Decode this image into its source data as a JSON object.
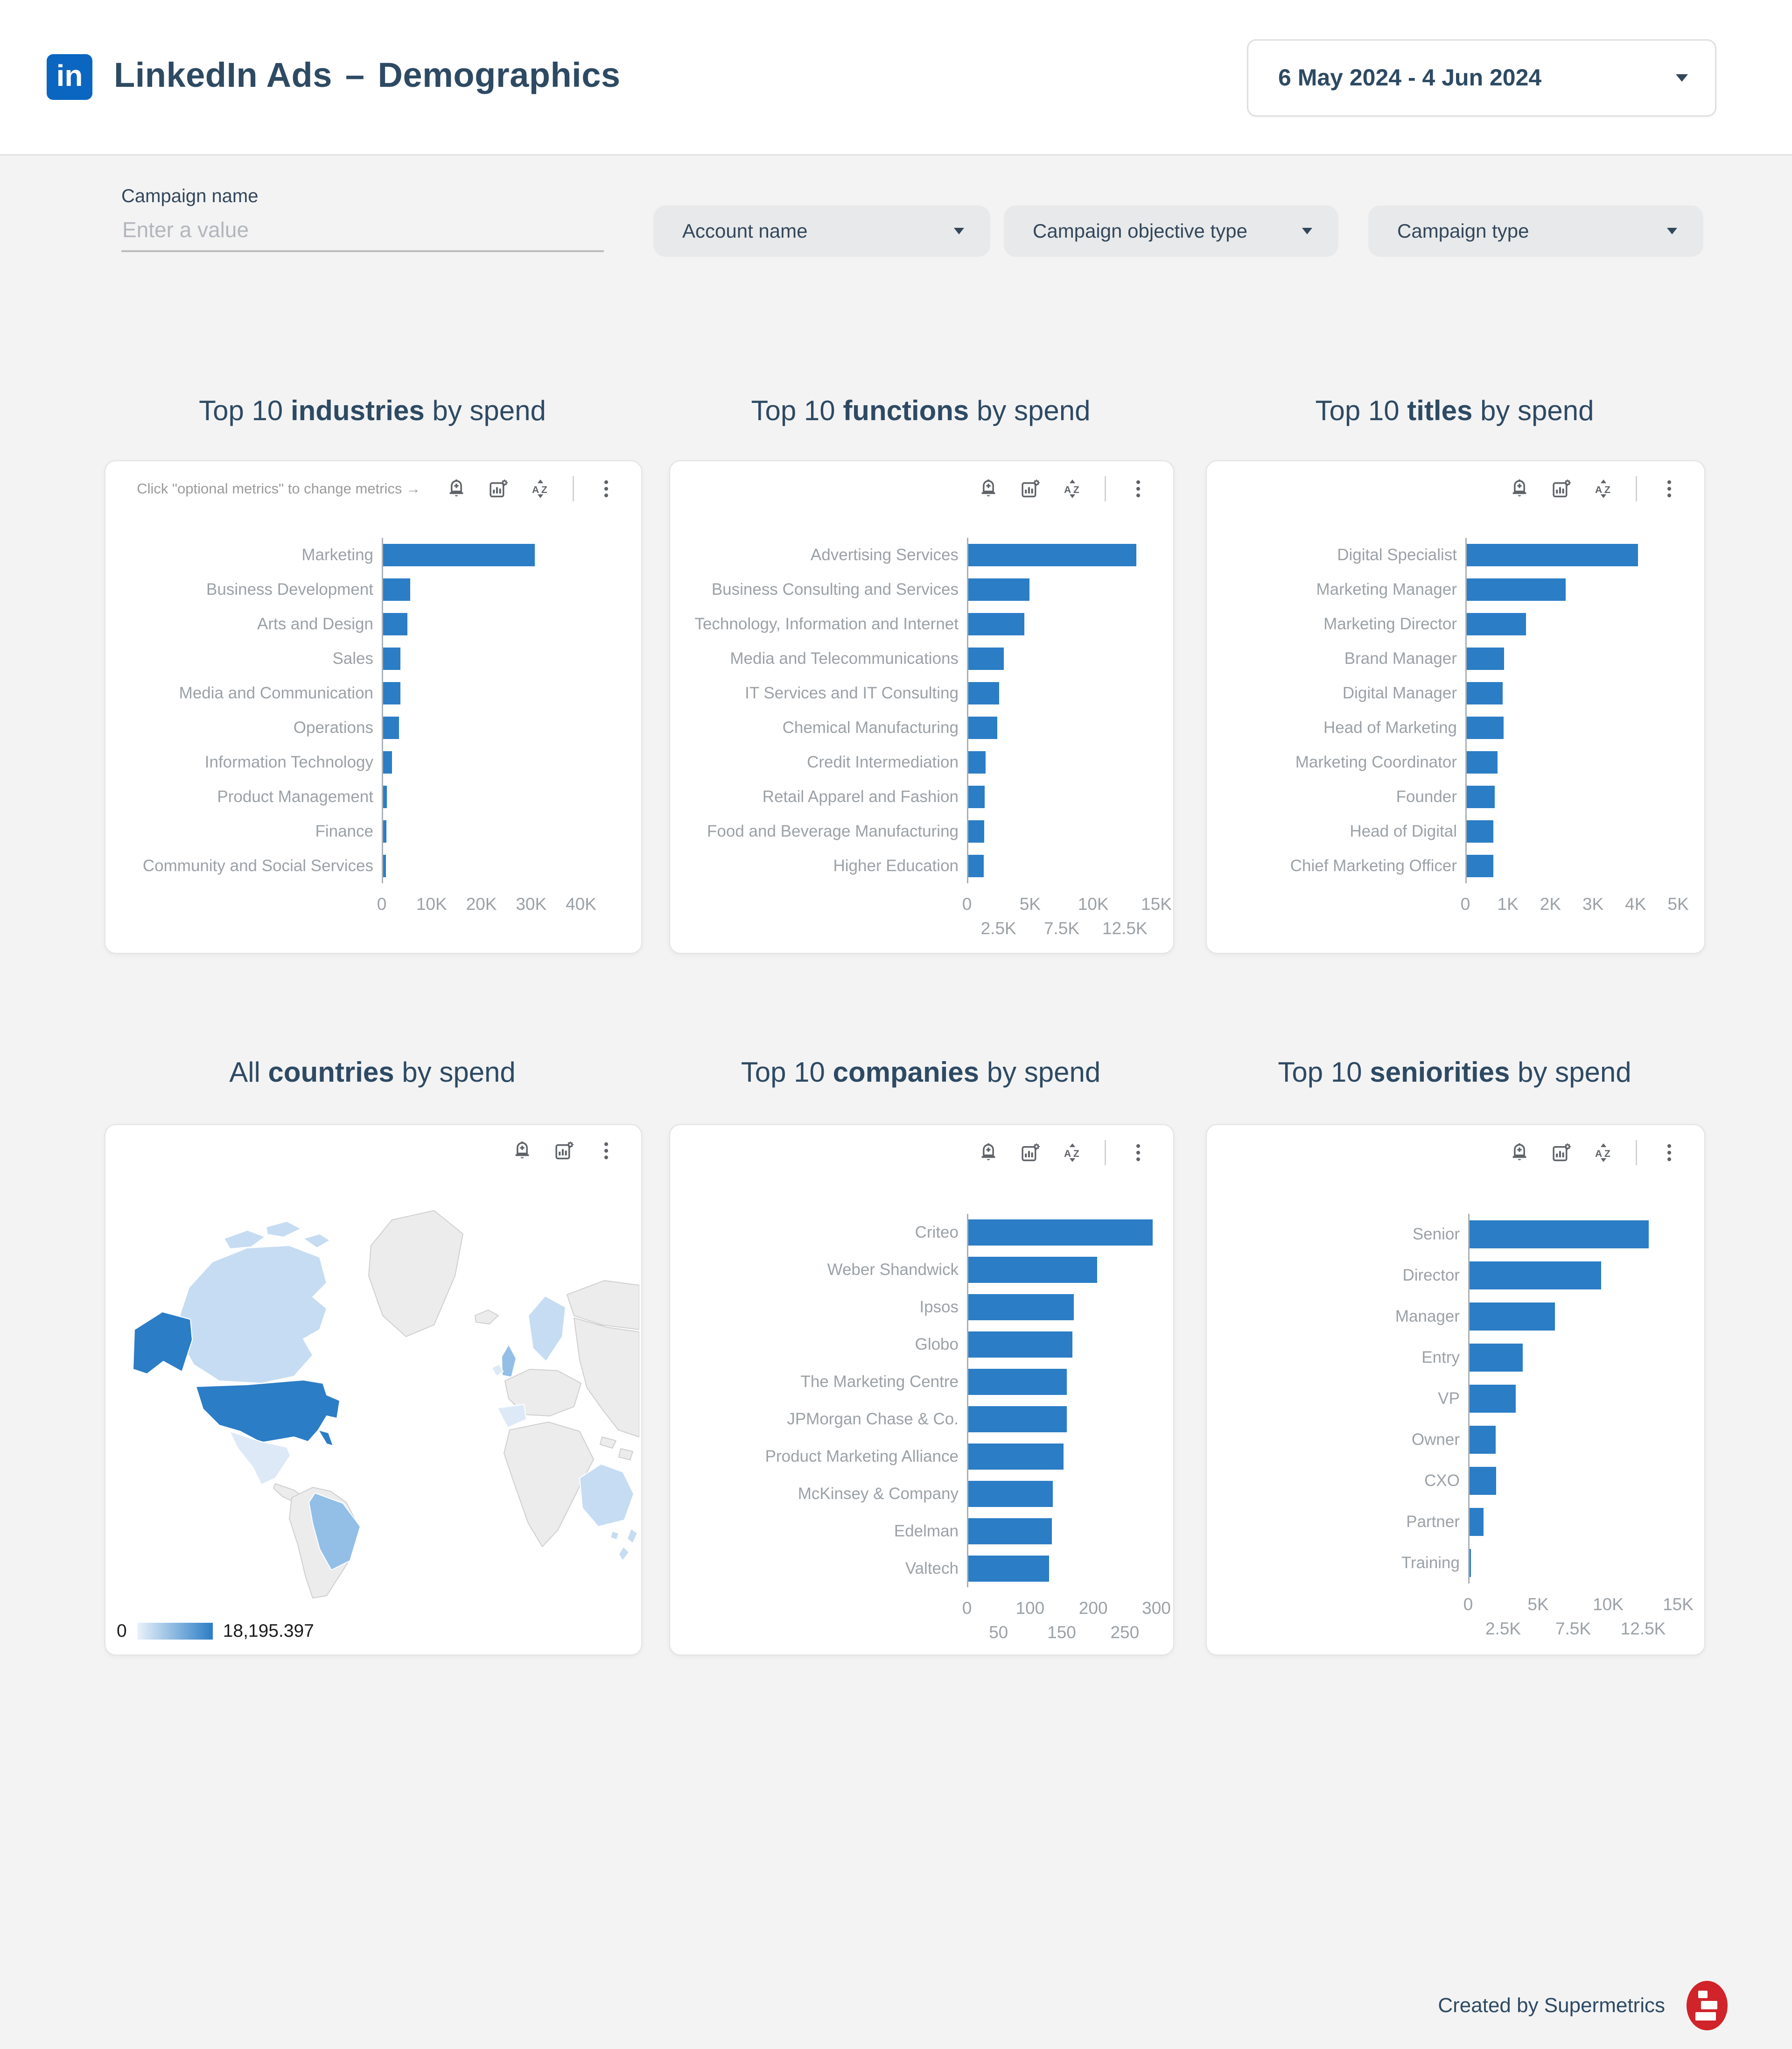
{
  "header": {
    "logo_text": "in",
    "app": "LinkedIn Ads",
    "separator": "–",
    "page": "Demographics",
    "date_range": "6 May 2024 - 4 Jun 2024"
  },
  "filters": {
    "campaign_name_label": "Campaign name",
    "campaign_name_placeholder": "Enter a value",
    "account_name": "Account name",
    "campaign_objective_type": "Campaign objective type",
    "campaign_type": "Campaign type"
  },
  "hint": "Click \"optional metrics\" to change metrics →",
  "footer": {
    "credit": "Created by Supermetrics"
  },
  "colors": {
    "bar": "#2b7dc6",
    "map_high": "#2b7dc6",
    "map_medium": "#93bfe6",
    "map_low": "#c6dcf2",
    "map_pale": "#dde9f6",
    "map_none": "#ececed",
    "accent_dark": "#2e4a63"
  },
  "chart_data": {
    "industries": {
      "type": "bar",
      "title_prefix": "Top 10 ",
      "title_bold": "industries",
      "title_suffix": " by spend",
      "categories": [
        "Marketing",
        "Business Development",
        "Arts and Design",
        "Sales",
        "Media and Communication",
        "Operations",
        "Information Technology",
        "Product Management",
        "Finance",
        "Community and Social Services"
      ],
      "values": [
        30400,
        5400,
        4900,
        3500,
        3450,
        3200,
        1750,
        760,
        700,
        520
      ],
      "xlim": [
        0,
        40000
      ],
      "ticks": [
        {
          "v": 0,
          "label": "0",
          "row": 0
        },
        {
          "v": 10000,
          "label": "10K",
          "row": 0
        },
        {
          "v": 20000,
          "label": "20K",
          "row": 0
        },
        {
          "v": 30000,
          "label": "30K",
          "row": 0
        },
        {
          "v": 40000,
          "label": "40K",
          "row": 0
        }
      ]
    },
    "functions": {
      "type": "bar",
      "title_prefix": "Top 10 ",
      "title_bold": "functions",
      "title_suffix": " by spend",
      "categories": [
        "Advertising Services",
        "Business Consulting and Services",
        "Technology, Information and Internet",
        "Media and Telecommunications",
        "IT Services and IT Consulting",
        "Chemical Manufacturing",
        "Credit Intermediation",
        "Retail Apparel and Fashion",
        "Food and Beverage Manufacturing",
        "Higher Education"
      ],
      "values": [
        13300,
        4850,
        4450,
        2800,
        2450,
        2300,
        1350,
        1280,
        1260,
        1220
      ],
      "xlim": [
        0,
        15000
      ],
      "ticks": [
        {
          "v": 0,
          "label": "0",
          "row": 0
        },
        {
          "v": 2500,
          "label": "2.5K",
          "row": 1
        },
        {
          "v": 5000,
          "label": "5K",
          "row": 0
        },
        {
          "v": 7500,
          "label": "7.5K",
          "row": 1
        },
        {
          "v": 10000,
          "label": "10K",
          "row": 0
        },
        {
          "v": 12500,
          "label": "12.5K",
          "row": 1
        },
        {
          "v": 15000,
          "label": "15K",
          "row": 0
        }
      ]
    },
    "titles": {
      "type": "bar",
      "title_prefix": "Top 10 ",
      "title_bold": "titles",
      "title_suffix": " by spend",
      "categories": [
        "Digital Specialist",
        "Marketing Manager",
        "Marketing Director",
        "Brand Manager",
        "Digital Manager",
        "Head of Marketing",
        "Marketing Coordinator",
        "Founder",
        "Head of Digital",
        "Chief Marketing Officer"
      ],
      "values": [
        4020,
        2330,
        1390,
        880,
        840,
        870,
        720,
        660,
        630,
        630
      ],
      "xlim": [
        0,
        5000
      ],
      "ticks": [
        {
          "v": 0,
          "label": "0",
          "row": 0
        },
        {
          "v": 1000,
          "label": "1K",
          "row": 0
        },
        {
          "v": 2000,
          "label": "2K",
          "row": 0
        },
        {
          "v": 3000,
          "label": "3K",
          "row": 0
        },
        {
          "v": 4000,
          "label": "4K",
          "row": 0
        },
        {
          "v": 5000,
          "label": "5K",
          "row": 0
        }
      ]
    },
    "countries": {
      "type": "choropleth",
      "title_prefix": "All ",
      "title_bold": "countries",
      "title_suffix": " by spend",
      "legend_min": "0",
      "legend_max": "18,195.397",
      "regions": {
        "United States": "high",
        "Canada": "low",
        "Mexico": "pale",
        "Brazil": "medium",
        "United Kingdom": "medium",
        "Ireland": "pale",
        "Nordics": "low",
        "Spain": "pale",
        "Australia": "low",
        "New Zealand": "low"
      }
    },
    "companies": {
      "type": "bar",
      "title_prefix": "Top 10 ",
      "title_bold": "companies",
      "title_suffix": " by spend",
      "categories": [
        "Criteo",
        "Weber Shandwick",
        "Ipsos",
        "Globo",
        "The Marketing Centre",
        "JPMorgan Chase & Co.",
        "Product Marketing Alliance",
        "McKinsey & Company",
        "Edelman",
        "Valtech"
      ],
      "values": [
        292,
        204,
        167,
        165,
        156,
        156,
        151,
        134,
        132,
        128
      ],
      "xlim": [
        0,
        300
      ],
      "ticks": [
        {
          "v": 0,
          "label": "0",
          "row": 0
        },
        {
          "v": 50,
          "label": "50",
          "row": 1
        },
        {
          "v": 100,
          "label": "100",
          "row": 0
        },
        {
          "v": 150,
          "label": "150",
          "row": 1
        },
        {
          "v": 200,
          "label": "200",
          "row": 0
        },
        {
          "v": 250,
          "label": "250",
          "row": 1
        },
        {
          "v": 300,
          "label": "300",
          "row": 0
        }
      ]
    },
    "seniorities": {
      "type": "bar",
      "title_prefix": "Top 10 ",
      "title_bold": "seniorities",
      "title_suffix": " by spend",
      "categories": [
        "Senior",
        "Director",
        "Manager",
        "Entry",
        "VP",
        "Owner",
        "CXO",
        "Partner",
        "Training"
      ],
      "values": [
        12800,
        9400,
        6100,
        3800,
        3300,
        1850,
        1900,
        1000,
        90
      ],
      "xlim": [
        0,
        15000
      ],
      "ticks": [
        {
          "v": 0,
          "label": "0",
          "row": 0
        },
        {
          "v": 2500,
          "label": "2.5K",
          "row": 1
        },
        {
          "v": 5000,
          "label": "5K",
          "row": 0
        },
        {
          "v": 7500,
          "label": "7.5K",
          "row": 1
        },
        {
          "v": 10000,
          "label": "10K",
          "row": 0
        },
        {
          "v": 12500,
          "label": "12.5K",
          "row": 1
        },
        {
          "v": 15000,
          "label": "15K",
          "row": 0
        }
      ]
    }
  }
}
